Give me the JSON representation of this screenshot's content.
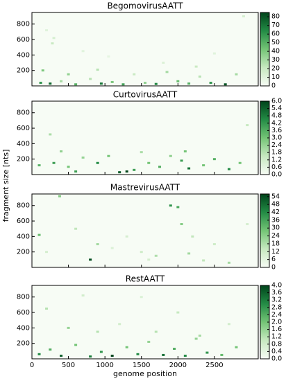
{
  "chart_data": [
    {
      "type": "heatmap",
      "title": "BegomovirusAATT",
      "y_label": "fragment size [nts]",
      "xlim": [
        0,
        3100
      ],
      "xticks": [
        0,
        500,
        1000,
        1500,
        2000,
        2500
      ],
      "ylim": [
        0,
        950
      ],
      "yticks": [
        200,
        400,
        600,
        800
      ],
      "clim": [
        0,
        85
      ],
      "cticks": [
        0,
        10,
        20,
        30,
        40,
        50,
        60,
        70,
        80
      ],
      "colors": [
        "#f7fcf5",
        "#c7e9c0",
        "#74c476",
        "#238b45",
        "#00441b"
      ],
      "cells": [
        [
          120,
          40,
          60
        ],
        [
          250,
          30,
          75
        ],
        [
          400,
          60,
          30
        ],
        [
          600,
          20,
          50
        ],
        [
          800,
          90,
          25
        ],
        [
          950,
          30,
          70
        ],
        [
          1100,
          50,
          40
        ],
        [
          1250,
          20,
          55
        ],
        [
          1400,
          150,
          20
        ],
        [
          1550,
          40,
          35
        ],
        [
          1700,
          25,
          65
        ],
        [
          1850,
          180,
          30
        ],
        [
          2000,
          60,
          45
        ],
        [
          2150,
          30,
          50
        ],
        [
          2300,
          120,
          25
        ],
        [
          2450,
          40,
          60
        ],
        [
          2650,
          20,
          80
        ],
        [
          2800,
          150,
          30
        ],
        [
          300,
          620,
          15
        ],
        [
          280,
          550,
          20
        ],
        [
          200,
          720,
          10
        ],
        [
          700,
          450,
          10
        ],
        [
          1050,
          380,
          8
        ],
        [
          1800,
          300,
          12
        ],
        [
          2500,
          420,
          10
        ],
        [
          150,
          200,
          40
        ],
        [
          900,
          210,
          25
        ],
        [
          2250,
          250,
          20
        ],
        [
          2900,
          900,
          15
        ],
        [
          500,
          150,
          35
        ]
      ]
    },
    {
      "type": "heatmap",
      "title": "CurtovirusAATT",
      "xlim": [
        0,
        3100
      ],
      "xticks": [
        0,
        500,
        1000,
        1500,
        2000,
        2500
      ],
      "ylim": [
        0,
        950
      ],
      "yticks": [
        200,
        400,
        600,
        800
      ],
      "clim": [
        0,
        6
      ],
      "cticks": [
        {
          "value": 0,
          "label": "0.0"
        },
        0.6,
        1.2,
        1.8,
        2.4,
        3.6,
        4.2,
        4.8,
        5.4,
        {
          "value": 6,
          "label": "6.0"
        },
        {
          "value": 3,
          "label": "3.0"
        }
      ],
      "colors": [
        "#f7fcf5",
        "#c7e9c0",
        "#74c476",
        "#238b45",
        "#00441b"
      ],
      "cells": [
        [
          100,
          120,
          3.5
        ],
        [
          300,
          150,
          4
        ],
        [
          500,
          100,
          3
        ],
        [
          700,
          220,
          2.4
        ],
        [
          900,
          150,
          4.5
        ],
        [
          1050,
          240,
          3
        ],
        [
          1200,
          30,
          5.5
        ],
        [
          1400,
          60,
          4
        ],
        [
          1600,
          150,
          3
        ],
        [
          1750,
          100,
          3.6
        ],
        [
          1900,
          240,
          2.5
        ],
        [
          2050,
          180,
          4
        ],
        [
          2150,
          80,
          5
        ],
        [
          2350,
          120,
          3
        ],
        [
          2500,
          200,
          3.5
        ],
        [
          2700,
          70,
          4.5
        ],
        [
          2850,
          150,
          3
        ],
        [
          250,
          520,
          2
        ],
        [
          400,
          300,
          2.5
        ],
        [
          1500,
          290,
          2
        ],
        [
          2100,
          300,
          3
        ],
        [
          2950,
          640,
          1.5
        ],
        [
          1300,
          40,
          6
        ],
        [
          600,
          40,
          4
        ]
      ]
    },
    {
      "type": "heatmap",
      "title": "MastrevirusAATT",
      "xlim": [
        0,
        3100
      ],
      "xticks": [
        0,
        500,
        1000,
        1500,
        2000,
        2500
      ],
      "ylim": [
        0,
        950
      ],
      "yticks": [
        200,
        400,
        600,
        800
      ],
      "clim": [
        0,
        56
      ],
      "cticks": [
        0,
        6,
        12,
        18,
        24,
        30,
        36,
        42,
        48,
        54
      ],
      "colors": [
        "#f7fcf5",
        "#c7e9c0",
        "#74c476",
        "#238b45",
        "#00441b"
      ],
      "cells": [
        [
          100,
          420,
          30
        ],
        [
          200,
          200,
          10
        ],
        [
          380,
          920,
          25
        ],
        [
          600,
          500,
          15
        ],
        [
          900,
          300,
          20
        ],
        [
          1300,
          400,
          10
        ],
        [
          1700,
          150,
          18
        ],
        [
          1900,
          800,
          40
        ],
        [
          2000,
          780,
          35
        ],
        [
          2050,
          560,
          25
        ],
        [
          2150,
          180,
          20
        ],
        [
          2350,
          90,
          15
        ],
        [
          2500,
          300,
          12
        ],
        [
          2700,
          60,
          20
        ],
        [
          2950,
          560,
          10
        ],
        [
          800,
          100,
          54
        ],
        [
          1100,
          250,
          8
        ],
        [
          1500,
          200,
          12
        ],
        [
          1600,
          100,
          10
        ],
        [
          2200,
          400,
          15
        ]
      ]
    },
    {
      "type": "heatmap",
      "title": "RestAATT",
      "x_label": "genome position",
      "xlim": [
        0,
        3100
      ],
      "xticks": [
        0,
        500,
        1000,
        1500,
        2000,
        2500
      ],
      "ylim": [
        0,
        950
      ],
      "yticks": [
        200,
        400,
        600,
        800
      ],
      "clim": [
        0,
        4
      ],
      "cticks": [
        {
          "value": 0,
          "label": "0.0"
        },
        0.4,
        0.8,
        1.2,
        1.6,
        {
          "value": 2,
          "label": "2.0"
        },
        2.4,
        2.8,
        3.2,
        3.6,
        {
          "value": 4,
          "label": "4.0"
        }
      ],
      "colors": [
        "#f7fcf5",
        "#c7e9c0",
        "#74c476",
        "#238b45",
        "#00441b"
      ],
      "cells": [
        [
          100,
          60,
          3
        ],
        [
          250,
          120,
          2.4
        ],
        [
          400,
          40,
          3.6
        ],
        [
          600,
          180,
          2
        ],
        [
          800,
          30,
          3.2
        ],
        [
          950,
          90,
          2.8
        ],
        [
          1100,
          40,
          4
        ],
        [
          1300,
          150,
          2
        ],
        [
          1450,
          60,
          3
        ],
        [
          1600,
          220,
          1.6
        ],
        [
          1800,
          50,
          3.4
        ],
        [
          1950,
          130,
          2.4
        ],
        [
          2100,
          40,
          3
        ],
        [
          2250,
          260,
          1.6
        ],
        [
          2400,
          80,
          2.8
        ],
        [
          2600,
          50,
          2.2
        ],
        [
          2800,
          150,
          2
        ],
        [
          200,
          650,
          1.2
        ],
        [
          500,
          400,
          1.6
        ],
        [
          900,
          350,
          1.2
        ],
        [
          1200,
          450,
          0.8
        ],
        [
          1700,
          350,
          1.2
        ],
        [
          2000,
          600,
          1
        ],
        [
          2300,
          300,
          1.4
        ],
        [
          2700,
          450,
          0.8
        ],
        [
          1500,
          800,
          0.6
        ],
        [
          700,
          820,
          0.8
        ]
      ]
    }
  ]
}
